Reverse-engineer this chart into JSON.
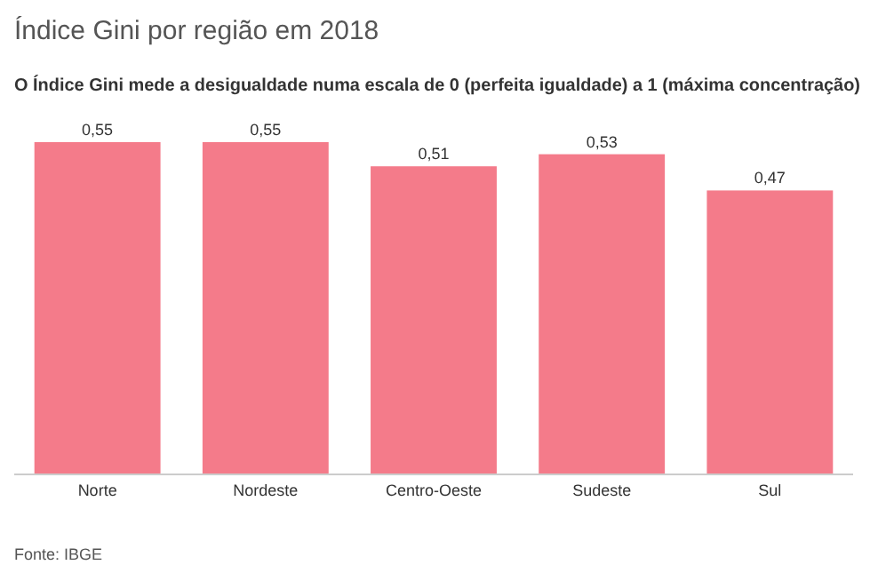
{
  "chart_data": {
    "type": "bar",
    "title": "Índice Gini por região em 2018",
    "subtitle": "O Índice Gini mede a desigualdade numa escala de 0 (perfeita igualdade) a 1 (máxima concentração)",
    "categories": [
      "Norte",
      "Nordeste",
      "Centro-Oeste",
      "Sudeste",
      "Sul"
    ],
    "values": [
      0.55,
      0.55,
      0.51,
      0.53,
      0.47
    ],
    "value_labels": [
      "0,55",
      "0,55",
      "0,51",
      "0,53",
      "0,47"
    ],
    "color": "#f47b8a",
    "tick_labels": "x",
    "annotations": [
      "Fonte: IBGE"
    ]
  }
}
